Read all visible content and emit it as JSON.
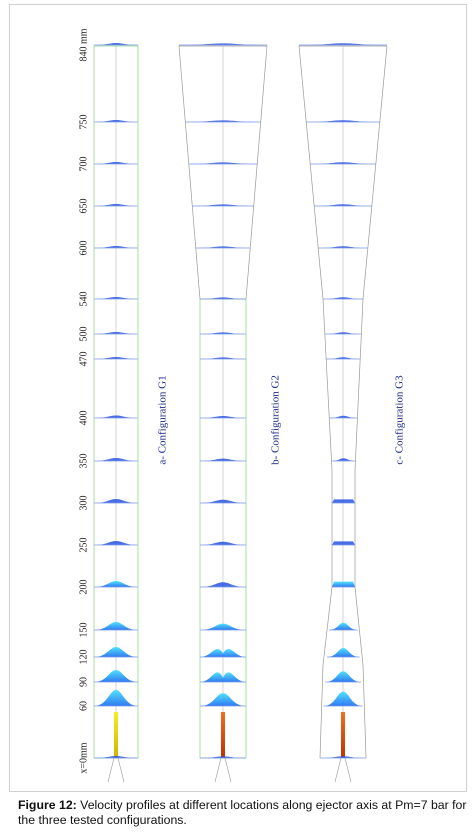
{
  "figure": {
    "axis_labels": [
      "840 mm",
      "750",
      "700",
      "650",
      "600",
      "540",
      "500",
      "470",
      "400",
      "350",
      "300",
      "250",
      "200",
      "150",
      "120",
      "90",
      "60",
      "x=0mm"
    ],
    "configurations": [
      {
        "label": "a- Configuration G1"
      },
      {
        "label": "b- Configuration G2"
      },
      {
        "label": "c- Configuration G3"
      }
    ],
    "colors": {
      "profile": "#2a55e0",
      "jet_core": "#d9d900",
      "jet_core_g2": "#e05a10",
      "duct": "#999999",
      "wall_green": "#8fdc8f"
    }
  },
  "caption": {
    "label": "Figure 12:",
    "text": " Velocity profiles at different locations along ejector axis at Pm=7 bar for the three tested configurations."
  }
}
